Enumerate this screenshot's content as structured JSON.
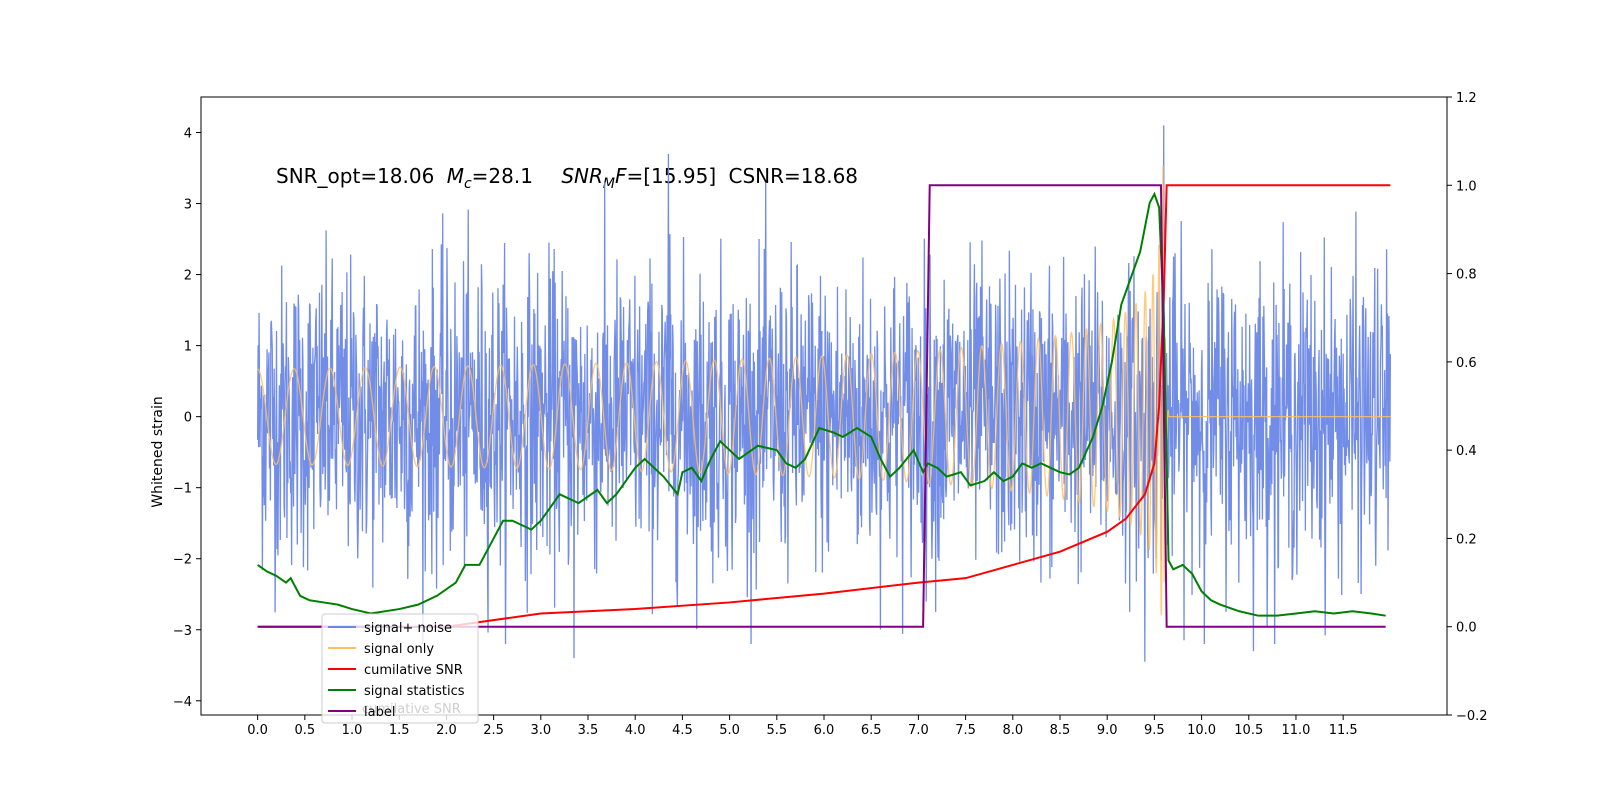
{
  "chart_data": {
    "type": "line",
    "annotation": {
      "part1": "SNR_opt=18.06",
      "mc_symbol": "M",
      "mc_sub": "c",
      "mc_value": "=28.1",
      "snrmf_symbol": "SNR",
      "snrmf_sub": "M",
      "snrmf_tail": "F",
      "snrmf_value": "=[15.95]",
      "csnr": "CSNR=18.68"
    },
    "ylabel_left": "Whitened strain",
    "ylim_left": [
      -4.2,
      4.5
    ],
    "yticks_left": [
      4,
      3,
      2,
      1,
      0,
      -1,
      -2,
      -3,
      -4
    ],
    "ytick_labels_left": [
      "4",
      "3",
      "2",
      "1",
      "0",
      "−1",
      "−2",
      "−3",
      "−4"
    ],
    "ylim_right": [
      -0.2,
      1.2
    ],
    "yticks_right": [
      1.2,
      1.0,
      0.8,
      0.6,
      0.4,
      0.2,
      0.0,
      -0.2
    ],
    "ytick_labels_right": [
      "1.2",
      "1.0",
      "0.8",
      "0.6",
      "0.4",
      "0.2",
      "0.0",
      "−0.2"
    ],
    "xlim": [
      -0.6,
      12.6
    ],
    "xticks": [
      0.0,
      0.5,
      1.0,
      1.5,
      2.0,
      2.5,
      3.0,
      3.5,
      4.0,
      4.5,
      5.0,
      5.5,
      6.0,
      6.5,
      7.0,
      7.5,
      8.0,
      8.5,
      9.0,
      9.5,
      10.0,
      10.5,
      11.0,
      11.5
    ],
    "xtick_labels": [
      "0.0",
      "0.5",
      "1.0",
      "1.5",
      "2.0",
      "2.5",
      "3.0",
      "3.5",
      "4.0",
      "4.5",
      "5.0",
      "5.5",
      "6.0",
      "6.5",
      "7.0",
      "7.5",
      "8.0",
      "8.5",
      "9.0",
      "9.5",
      "10.0",
      "10.5",
      "11.0",
      "11.5"
    ],
    "legend_position": "lower-left",
    "legend": [
      {
        "label": "signal+ noise",
        "color": "#6a87e6"
      },
      {
        "label": "signal only",
        "color": "#ffbf60"
      },
      {
        "label": "cumilative SNR",
        "color": "#ff0000"
      },
      {
        "label": "signal statistics",
        "color": "#008000"
      },
      {
        "label": "label",
        "color": "#800080"
      }
    ],
    "hidden_legend_text": "cumilative SNR",
    "series": [
      {
        "name": "signal+ noise",
        "axis": "left",
        "color": "#6a87e6",
        "kind": "noise",
        "t_start": 0.0,
        "t_end": 12.0,
        "typical_amplitude": 1.4,
        "peaks": [
          {
            "t": 4.35,
            "y": 3.7
          },
          {
            "t": 9.6,
            "y": 4.1
          },
          {
            "t": 9.6,
            "y": -3.8
          },
          {
            "t": 3.35,
            "y": -3.4
          },
          {
            "t": 9.4,
            "y": -3.45
          },
          {
            "t": 10.55,
            "y": -3.3
          }
        ]
      },
      {
        "name": "signal only",
        "axis": "left",
        "color": "#ffbf60",
        "kind": "chirp",
        "t_start": 0.0,
        "t_merger": 9.6,
        "t_end": 12.0,
        "peak_amplitude": 3.95
      },
      {
        "name": "cumilative SNR",
        "axis": "right",
        "color": "#ff0000",
        "points": [
          [
            0.0,
            0.0
          ],
          [
            2.0,
            0.0
          ],
          [
            3.0,
            0.03
          ],
          [
            4.0,
            0.04
          ],
          [
            5.0,
            0.055
          ],
          [
            6.0,
            0.075
          ],
          [
            7.0,
            0.1
          ],
          [
            7.5,
            0.11
          ],
          [
            8.0,
            0.14
          ],
          [
            8.5,
            0.17
          ],
          [
            9.0,
            0.215
          ],
          [
            9.2,
            0.245
          ],
          [
            9.4,
            0.3
          ],
          [
            9.5,
            0.37
          ],
          [
            9.55,
            0.5
          ],
          [
            9.6,
            0.75
          ],
          [
            9.63,
            1.0
          ],
          [
            12.0,
            1.0
          ]
        ]
      },
      {
        "name": "signal statistics",
        "axis": "right",
        "color": "#008000",
        "points": [
          [
            0.0,
            0.14
          ],
          [
            0.1,
            0.125
          ],
          [
            0.2,
            0.115
          ],
          [
            0.3,
            0.1
          ],
          [
            0.35,
            0.11
          ],
          [
            0.45,
            0.07
          ],
          [
            0.55,
            0.06
          ],
          [
            0.7,
            0.055
          ],
          [
            0.85,
            0.05
          ],
          [
            1.0,
            0.04
          ],
          [
            1.2,
            0.03
          ],
          [
            1.5,
            0.04
          ],
          [
            1.7,
            0.05
          ],
          [
            1.9,
            0.07
          ],
          [
            2.1,
            0.1
          ],
          [
            2.2,
            0.14
          ],
          [
            2.35,
            0.14
          ],
          [
            2.5,
            0.2
          ],
          [
            2.6,
            0.24
          ],
          [
            2.7,
            0.24
          ],
          [
            2.9,
            0.22
          ],
          [
            3.0,
            0.24
          ],
          [
            3.2,
            0.3
          ],
          [
            3.4,
            0.28
          ],
          [
            3.6,
            0.31
          ],
          [
            3.7,
            0.28
          ],
          [
            3.8,
            0.3
          ],
          [
            4.0,
            0.36
          ],
          [
            4.1,
            0.38
          ],
          [
            4.3,
            0.34
          ],
          [
            4.45,
            0.3
          ],
          [
            4.5,
            0.35
          ],
          [
            4.6,
            0.36
          ],
          [
            4.7,
            0.33
          ],
          [
            4.8,
            0.38
          ],
          [
            4.9,
            0.42
          ],
          [
            5.0,
            0.4
          ],
          [
            5.1,
            0.38
          ],
          [
            5.3,
            0.41
          ],
          [
            5.5,
            0.4
          ],
          [
            5.6,
            0.37
          ],
          [
            5.7,
            0.36
          ],
          [
            5.8,
            0.38
          ],
          [
            5.95,
            0.45
          ],
          [
            6.1,
            0.44
          ],
          [
            6.2,
            0.43
          ],
          [
            6.35,
            0.45
          ],
          [
            6.5,
            0.43
          ],
          [
            6.6,
            0.38
          ],
          [
            6.7,
            0.34
          ],
          [
            6.8,
            0.36
          ],
          [
            6.95,
            0.4
          ],
          [
            7.05,
            0.35
          ],
          [
            7.1,
            0.37
          ],
          [
            7.2,
            0.36
          ],
          [
            7.3,
            0.34
          ],
          [
            7.45,
            0.35
          ],
          [
            7.55,
            0.32
          ],
          [
            7.7,
            0.33
          ],
          [
            7.8,
            0.35
          ],
          [
            7.9,
            0.33
          ],
          [
            8.0,
            0.34
          ],
          [
            8.1,
            0.37
          ],
          [
            8.2,
            0.36
          ],
          [
            8.3,
            0.37
          ],
          [
            8.4,
            0.36
          ],
          [
            8.5,
            0.35
          ],
          [
            8.6,
            0.345
          ],
          [
            8.7,
            0.36
          ],
          [
            8.85,
            0.43
          ],
          [
            8.95,
            0.5
          ],
          [
            9.05,
            0.6
          ],
          [
            9.15,
            0.73
          ],
          [
            9.25,
            0.79
          ],
          [
            9.35,
            0.85
          ],
          [
            9.45,
            0.96
          ],
          [
            9.5,
            0.98
          ],
          [
            9.55,
            0.95
          ],
          [
            9.6,
            0.7
          ],
          [
            9.65,
            0.15
          ],
          [
            9.7,
            0.13
          ],
          [
            9.8,
            0.14
          ],
          [
            9.9,
            0.12
          ],
          [
            10.0,
            0.08
          ],
          [
            10.1,
            0.06
          ],
          [
            10.2,
            0.05
          ],
          [
            10.4,
            0.035
          ],
          [
            10.6,
            0.025
          ],
          [
            10.8,
            0.025
          ],
          [
            11.0,
            0.03
          ],
          [
            11.2,
            0.035
          ],
          [
            11.4,
            0.03
          ],
          [
            11.6,
            0.035
          ],
          [
            11.8,
            0.03
          ],
          [
            11.95,
            0.025
          ]
        ]
      },
      {
        "name": "label",
        "axis": "right",
        "color": "#800080",
        "points": [
          [
            0.0,
            0.0
          ],
          [
            7.05,
            0.0
          ],
          [
            7.12,
            1.0
          ],
          [
            9.57,
            1.0
          ],
          [
            9.63,
            0.0
          ],
          [
            11.95,
            0.0
          ]
        ]
      }
    ]
  }
}
